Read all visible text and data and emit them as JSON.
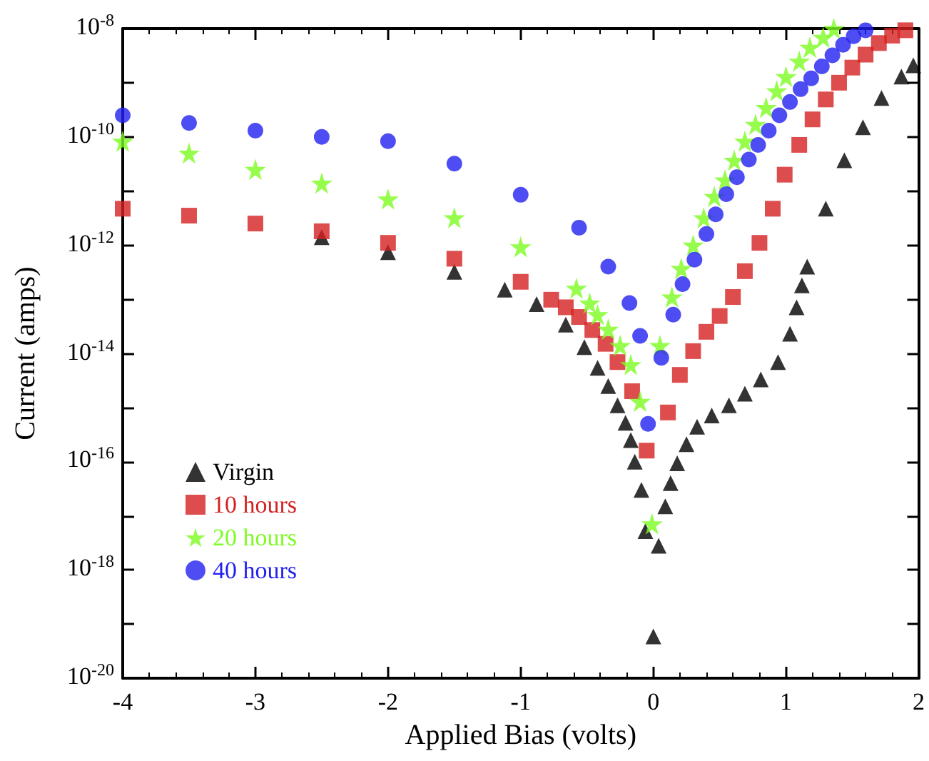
{
  "chart_data": {
    "type": "scatter",
    "xlabel": "Applied Bias (volts)",
    "ylabel": "Current (amps)",
    "xlim": [
      -4,
      2
    ],
    "xticks": [
      -4,
      -3,
      -2,
      -1,
      0,
      1,
      2
    ],
    "ylim": [
      1e-20,
      1e-08
    ],
    "log": "y",
    "yticks": [
      {
        "value": 1e-08,
        "label": "10$^{-8}$"
      },
      {
        "value": 1e-09,
        "label": null
      },
      {
        "value": 1e-10,
        "label": "10$^{-10}$"
      },
      {
        "value": 1e-11,
        "label": null
      },
      {
        "value": 1e-12,
        "label": "10$^{-12}$"
      },
      {
        "value": 1e-13,
        "label": null
      },
      {
        "value": 1e-14,
        "label": "10$^{-14}$"
      },
      {
        "value": 1e-15,
        "label": null
      },
      {
        "value": 1e-16,
        "label": "10$^{-16}$"
      },
      {
        "value": 1e-17,
        "label": null
      },
      {
        "value": 1e-18,
        "label": "10$^{-18}$"
      },
      {
        "value": 1e-19,
        "label": null
      },
      {
        "value": 1e-20,
        "label": "10$^{-20}$"
      }
    ],
    "grid": false,
    "legend": "bottom left",
    "series": [
      {
        "name": "Virgin",
        "color": "#000000",
        "marker": "triangle",
        "x": [
          -2.5,
          -2,
          -1.5,
          -1.12,
          -0.88,
          -0.66,
          -0.52,
          -0.42,
          -0.34,
          -0.27,
          -0.21,
          -0.17,
          -0.14,
          -0.09,
          -0.06,
          0,
          0.04,
          0.09,
          0.13,
          0.18,
          0.25,
          0.33,
          0.44,
          0.57,
          0.69,
          0.81,
          0.94,
          1.03,
          1.08,
          1.12,
          1.16,
          1.3,
          1.44,
          1.58,
          1.72,
          1.87,
          1.96
        ],
        "values": [
          1.4e-12,
          7.4e-13,
          3.2e-13,
          1.5e-13,
          8.1e-14,
          3.4e-14,
          1.3e-14,
          5.4e-15,
          2.5e-15,
          1.1e-15,
          5.2e-16,
          2.5e-16,
          1e-16,
          3e-17,
          5.2e-18,
          5.9e-20,
          2.8e-18,
          1.5e-17,
          4e-17,
          9.3e-17,
          2.1e-16,
          4.4e-16,
          7.1e-16,
          1.1e-15,
          1.8e-15,
          3.3e-15,
          6.9e-15,
          2.3e-14,
          7.1e-14,
          1.8e-13,
          4e-13,
          4.7e-12,
          3.7e-11,
          1.5e-10,
          5.2e-10,
          1.3e-09,
          2.1e-09
        ]
      },
      {
        "name": "10 hours",
        "color": "#d42020",
        "marker": "square",
        "x": [
          -4,
          -3.5,
          -3,
          -2.5,
          -2,
          -1.5,
          -1,
          -0.77,
          -0.66,
          -0.56,
          -0.46,
          -0.36,
          -0.27,
          -0.16,
          -0.05,
          0.11,
          0.2,
          0.3,
          0.4,
          0.5,
          0.6,
          0.69,
          0.8,
          0.9,
          0.99,
          1.1,
          1.2,
          1.3,
          1.4,
          1.5,
          1.6,
          1.7,
          1.8,
          1.9
        ],
        "values": [
          4.7e-12,
          3.5e-12,
          2.5e-12,
          1.8e-12,
          1.1e-12,
          5.6e-13,
          2.1e-13,
          9.8e-14,
          7.1e-14,
          4.7e-14,
          2.7e-14,
          1.5e-14,
          6.9e-15,
          2e-15,
          1.6e-16,
          8.1e-16,
          4e-15,
          1.1e-14,
          2.5e-14,
          4.9e-14,
          1.1e-13,
          3.3e-13,
          1.1e-12,
          4.7e-12,
          2e-11,
          7.1e-11,
          2.1e-10,
          4.9e-10,
          1e-09,
          1.9e-09,
          3.3e-09,
          5.4e-09,
          7.4e-09,
          9.3e-09
        ]
      },
      {
        "name": "20 hours",
        "color": "#7cfc20",
        "marker": "star",
        "x": [
          -4,
          -3.5,
          -3,
          -2.5,
          -2,
          -1.5,
          -1,
          -0.58,
          -0.48,
          -0.42,
          -0.34,
          -0.25,
          -0.17,
          -0.1,
          -0.01,
          0.05,
          0.14,
          0.21,
          0.3,
          0.38,
          0.46,
          0.54,
          0.61,
          0.69,
          0.77,
          0.85,
          0.93,
          1.0,
          1.1,
          1.18,
          1.28,
          1.36
        ],
        "values": [
          8.3e-11,
          5e-11,
          2.5e-11,
          1.4e-11,
          7.1e-12,
          3.2e-12,
          9.3e-13,
          1.6e-13,
          8.5e-14,
          5.2e-14,
          2.8e-14,
          1.4e-14,
          6.2e-15,
          1.3e-15,
          7.1e-18,
          1.4e-14,
          1.1e-13,
          3.7e-13,
          1e-12,
          3.2e-12,
          7.9e-12,
          1.6e-11,
          3.7e-11,
          8.3e-11,
          1.7e-10,
          3.5e-10,
          7.1e-10,
          1.3e-09,
          2.5e-09,
          4.5e-09,
          6.9e-09,
          1e-08
        ]
      },
      {
        "name": "40 hours",
        "color": "#2020f0",
        "marker": "circle",
        "x": [
          -4,
          -3.5,
          -3,
          -2.5,
          -2,
          -1.5,
          -1,
          -0.56,
          -0.34,
          -0.18,
          -0.1,
          -0.04,
          0.06,
          0.15,
          0.22,
          0.31,
          0.4,
          0.47,
          0.55,
          0.63,
          0.72,
          0.79,
          0.87,
          0.95,
          1.03,
          1.11,
          1.19,
          1.27,
          1.35,
          1.43,
          1.51,
          1.6
        ],
        "values": [
          2.5e-10,
          1.8e-10,
          1.3e-10,
          1e-10,
          8.3e-11,
          3.2e-11,
          8.5e-12,
          2.1e-12,
          4e-13,
          8.5e-14,
          2.1e-14,
          5e-16,
          8.3e-15,
          5.2e-14,
          1.9e-13,
          5.4e-13,
          1.6e-12,
          3.7e-12,
          8.7e-12,
          1.8e-11,
          3.8e-11,
          7.1e-11,
          1.3e-10,
          2.5e-10,
          4.4e-10,
          7.6e-10,
          1.2e-09,
          2e-09,
          3.2e-09,
          5e-09,
          7.2e-09,
          9.3e-09
        ]
      }
    ]
  }
}
